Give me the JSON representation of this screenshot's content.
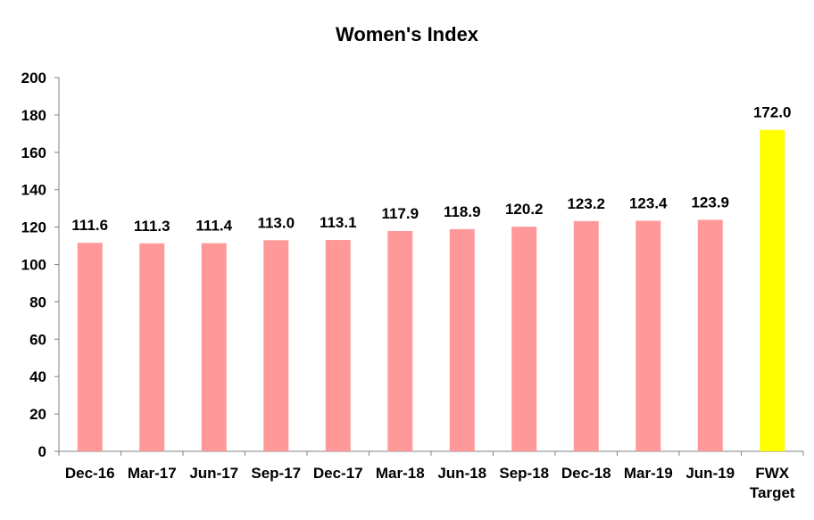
{
  "chart_data": {
    "type": "bar",
    "title": "Women's Index",
    "categories": [
      "Dec-16",
      "Mar-17",
      "Jun-17",
      "Sep-17",
      "Dec-17",
      "Mar-18",
      "Jun-18",
      "Sep-18",
      "Dec-18",
      "Mar-19",
      "Jun-19",
      "FWX Target"
    ],
    "values": [
      111.6,
      111.3,
      111.4,
      113.0,
      113.1,
      117.9,
      118.9,
      120.2,
      123.2,
      123.4,
      123.9,
      172.0
    ],
    "value_labels": [
      "111.6",
      "111.3",
      "111.4",
      "113.0",
      "113.1",
      "117.9",
      "118.9",
      "120.2",
      "123.2",
      "123.4",
      "123.9",
      "172.0"
    ],
    "colors": [
      "#ff9999",
      "#ff9999",
      "#ff9999",
      "#ff9999",
      "#ff9999",
      "#ff9999",
      "#ff9999",
      "#ff9999",
      "#ff9999",
      "#ff9999",
      "#ff9999",
      "#ffff00"
    ],
    "ylim": [
      0,
      200
    ],
    "yticks": [
      "0",
      "20",
      "40",
      "60",
      "80",
      "100",
      "120",
      "140",
      "160",
      "180",
      "200"
    ],
    "xlabel": "",
    "ylabel": "",
    "grid": false,
    "legend": "none"
  }
}
